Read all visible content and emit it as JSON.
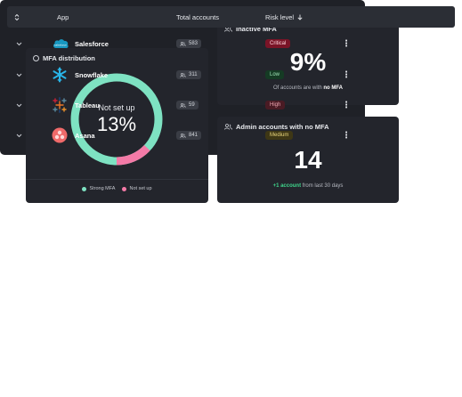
{
  "mfa_distribution": {
    "title": "MFA distribution",
    "center_label": "Not set up",
    "center_value": "13%",
    "not_set_up_fraction": 0.13,
    "legend": [
      {
        "label": "Strong MFA",
        "color": "#7ee2c2"
      },
      {
        "label": "Not set up",
        "color": "#f47aa7"
      }
    ]
  },
  "inactive_mfa": {
    "title": "Inactive MFA",
    "value": "9%",
    "note_prefix": "Of accounts are with ",
    "note_bold": "no MFA"
  },
  "admin_no_mfa": {
    "title": "Admin accounts with no MFA",
    "value": "14",
    "delta": "+1 account",
    "note_suffix": " from last 30 days"
  },
  "table": {
    "columns": {
      "app": "App",
      "total_accounts": "Total accounts",
      "risk_level": "Risk level",
      "sort_icon": "arrow-down-icon"
    },
    "rows": [
      {
        "app": "Salesforce",
        "logo": "salesforce-logo",
        "accounts": "583",
        "risk": "Critical",
        "risk_bg": "#7a1427",
        "risk_fg": "#ffd6de"
      },
      {
        "app": "Snowflake",
        "logo": "snowflake-logo",
        "accounts": "311",
        "risk": "Low",
        "risk_bg": "#153b24",
        "risk_fg": "#9fe3b7"
      },
      {
        "app": "Tableau",
        "logo": "tableau-logo",
        "accounts": "59",
        "risk": "High",
        "risk_bg": "#4a1b24",
        "risk_fg": "#f0a8b4"
      },
      {
        "app": "Asana",
        "logo": "asana-logo",
        "accounts": "841",
        "risk": "Medium",
        "risk_bg": "#3e3715",
        "risk_fg": "#e9d67d"
      }
    ]
  }
}
